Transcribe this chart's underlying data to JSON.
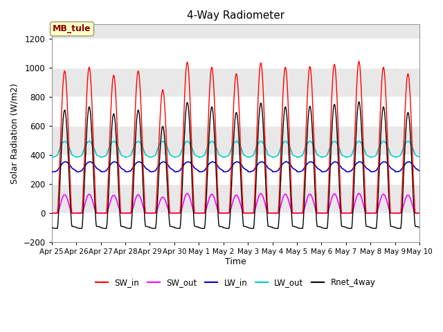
{
  "title": "4-Way Radiometer",
  "xlabel": "Time",
  "ylabel": "Solar Radiation (W/m2)",
  "ylim": [
    -200,
    1300
  ],
  "yticks": [
    -200,
    0,
    200,
    400,
    600,
    800,
    1000,
    1200
  ],
  "annotation_text": "MB_tule",
  "annotation_color": "#8B0000",
  "annotation_bg": "#FFFFCC",
  "annotation_border": "#999966",
  "x_tick_labels": [
    "Apr 25",
    "Apr 26",
    "Apr 27",
    "Apr 28",
    "Apr 29",
    "Apr 30",
    "May 1",
    "May 2",
    "May 3",
    "May 4",
    "May 5",
    "May 6",
    "May 7",
    "May 8",
    "May 9",
    "May 10"
  ],
  "n_days": 15,
  "colors": {
    "SW_in": "#FF0000",
    "SW_out": "#FF00FF",
    "LW_in": "#0000CC",
    "LW_out": "#00CCCC",
    "Rnet_4way": "#000000"
  },
  "legend_labels": [
    "SW_in",
    "SW_out",
    "LW_in",
    "LW_out",
    "Rnet_4way"
  ],
  "background_light": "#E8E8E8",
  "background_white": "#FFFFFF",
  "grid_color": "#FFFFFF",
  "sw_in_peaks": [
    980,
    1005,
    950,
    980,
    850,
    1040,
    1005,
    960,
    1035,
    1005,
    1010,
    1025,
    1045,
    1005,
    960
  ],
  "figsize": [
    6.4,
    4.8
  ],
  "dpi": 100
}
